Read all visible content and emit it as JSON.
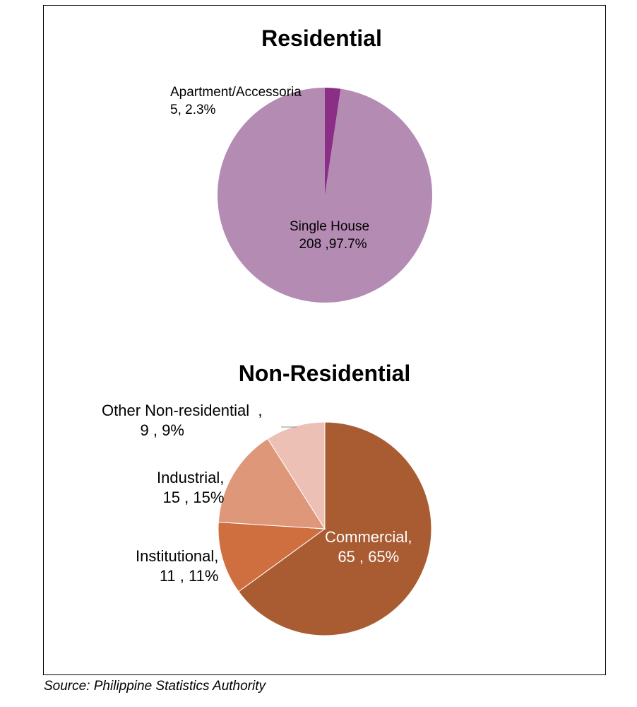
{
  "chart_data": [
    {
      "type": "pie",
      "title": "Residential",
      "slices": [
        {
          "name": "Single House",
          "value": 208,
          "percent": 97.7,
          "label_line1": "Single House",
          "label_line2": "208 ,97.7%",
          "color": "#b48bb3"
        },
        {
          "name": "Apartment/Accessoria",
          "value": 5,
          "percent": 2.3,
          "label_line1": "Apartment/Accessoria",
          "label_line2": "5, 2.3%",
          "color": "#8b2f86"
        }
      ]
    },
    {
      "type": "pie",
      "title": "Non-Residential",
      "slices": [
        {
          "name": "Commercial",
          "value": 65,
          "percent": 65,
          "label_line1": "Commercial,",
          "label_line2": "65 , 65%",
          "color": "#a95b32"
        },
        {
          "name": "Institutional",
          "value": 11,
          "percent": 11,
          "label_line1": "Institutional,",
          "label_line2": "11 , 11%",
          "color": "#cf6f3f"
        },
        {
          "name": "Industrial",
          "value": 15,
          "percent": 15,
          "label_line1": "Industrial,",
          "label_line2": "15 , 15%",
          "color": "#df977a"
        },
        {
          "name": "Other Non-residential",
          "value": 9,
          "percent": 9,
          "label_line1": "Other Non-residential  ,",
          "label_line2": "9 , 9%",
          "color": "#ecc0b5"
        }
      ]
    }
  ],
  "source": "Source: Philippine Statistics Authority"
}
